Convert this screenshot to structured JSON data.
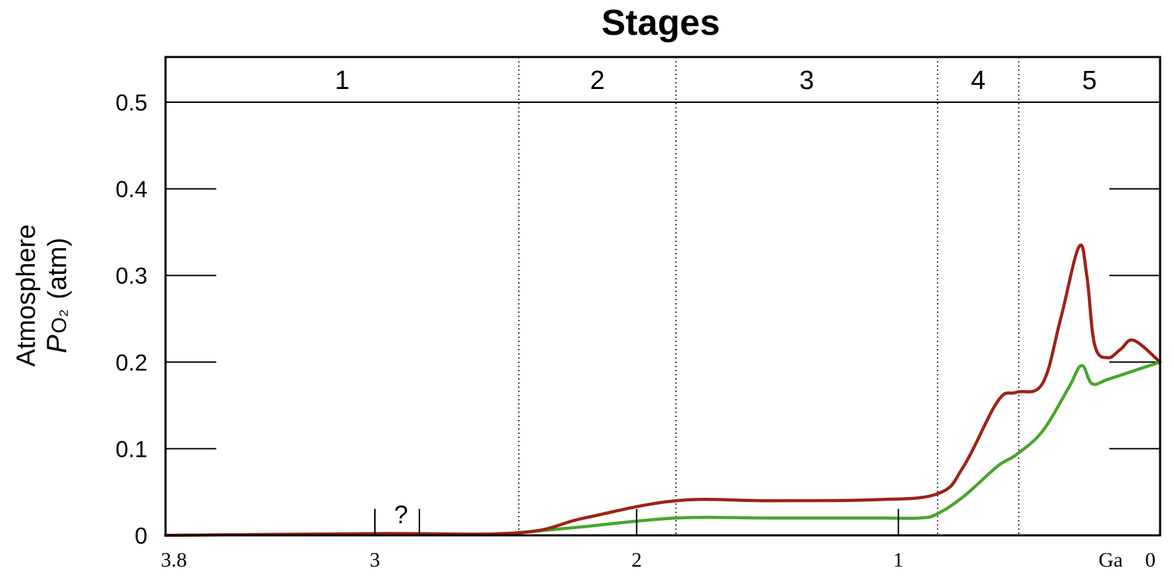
{
  "chart_data": {
    "type": "line",
    "title": "Stages",
    "ylabel": {
      "line1": "Atmosphere",
      "italic": "P",
      "sub": "O₂",
      "rest": "(atm)"
    },
    "xunit_label": "Ga",
    "xlim": [
      3.8,
      0
    ],
    "ylim": [
      0,
      0.5
    ],
    "xticks": [
      {
        "value": 3.8,
        "label": "3.8"
      },
      {
        "value": 3,
        "label": "3"
      },
      {
        "value": 2,
        "label": "2"
      },
      {
        "value": 1,
        "label": "1"
      },
      {
        "value": 0,
        "label": "0"
      }
    ],
    "yticks": [
      {
        "value": 0,
        "label": "0"
      },
      {
        "value": 0.1,
        "label": "0.1"
      },
      {
        "value": 0.2,
        "label": "0.2"
      },
      {
        "value": 0.3,
        "label": "0.3"
      },
      {
        "value": 0.4,
        "label": "0.4"
      },
      {
        "value": 0.5,
        "label": "0.5"
      }
    ],
    "stages": [
      {
        "label": "1",
        "start": 3.8,
        "end": 2.45
      },
      {
        "label": "2",
        "start": 2.45,
        "end": 1.85
      },
      {
        "label": "3",
        "start": 1.85,
        "end": 0.85
      },
      {
        "label": "4",
        "start": 0.85,
        "end": 0.54
      },
      {
        "label": "5",
        "start": 0.54,
        "end": 0
      }
    ],
    "stage_boundaries": [
      2.45,
      1.85,
      0.85,
      0.54
    ],
    "annotation": {
      "text": "?",
      "x": 2.9,
      "y": 0.03
    },
    "series": [
      {
        "color": "#9e2216",
        "x": [
          3.8,
          3.0,
          2.45,
          2.2,
          1.85,
          1.5,
          1.1,
          0.85,
          0.75,
          0.62,
          0.55,
          0.45,
          0.38,
          0.31,
          0.28,
          0.25,
          0.2,
          0.15,
          0.1,
          0.0
        ],
        "y": [
          0.0,
          0.002,
          0.003,
          0.02,
          0.04,
          0.04,
          0.041,
          0.048,
          0.08,
          0.155,
          0.165,
          0.175,
          0.25,
          0.333,
          0.3,
          0.22,
          0.205,
          0.215,
          0.225,
          0.2
        ]
      },
      {
        "color": "#4aa52e",
        "x": [
          2.45,
          2.2,
          1.85,
          1.5,
          1.1,
          0.92,
          0.85,
          0.75,
          0.62,
          0.55,
          0.45,
          0.35,
          0.3,
          0.26,
          0.2,
          0.1,
          0.0
        ],
        "y": [
          0.003,
          0.01,
          0.02,
          0.02,
          0.02,
          0.02,
          0.025,
          0.045,
          0.08,
          0.093,
          0.12,
          0.17,
          0.196,
          0.175,
          0.18,
          0.19,
          0.2
        ]
      }
    ]
  }
}
